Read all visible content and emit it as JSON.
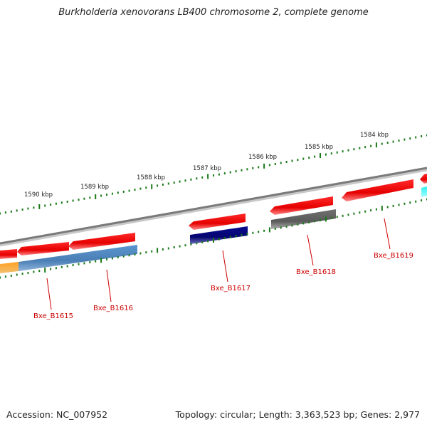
{
  "title": "Burkholderia xenovorans LB400 chromosome 2, complete genome",
  "footer": {
    "accession": "Accession: NC_007952",
    "summary": "Topology: circular; Length: 3,363,523 bp; Genes: 2,977"
  },
  "scale_labels": [
    "1590 kbp",
    "1589 kbp",
    "1588 kbp",
    "1587 kbp",
    "1586 kbp",
    "1585 kbp",
    "1584 kbp"
  ],
  "gene_labels": [
    "Bxe_B1615",
    "Bxe_B1616",
    "Bxe_B1617",
    "Bxe_B1618",
    "Bxe_B1619"
  ],
  "colors": {
    "backbone": "#7f7f7f",
    "forward_gene": "#ee0000",
    "tick": "#1a7a1a",
    "label": "#cc0000",
    "steelblue": "#4f86be",
    "navy": "#0a0a80",
    "gray": "#6a6a6a",
    "orange": "#f59a1a",
    "cyan": "#1ee6e6"
  }
}
